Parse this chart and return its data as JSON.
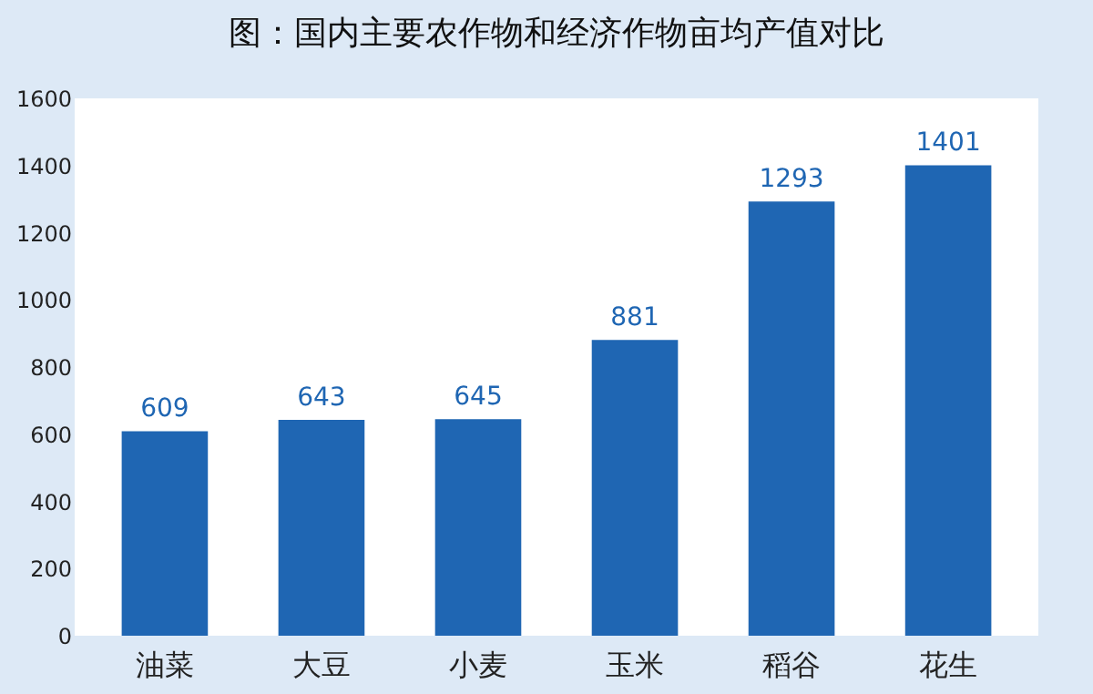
{
  "chart_data": {
    "type": "bar",
    "title": "图：国内主要农作物和经济作物亩均产值对比",
    "categories": [
      "油菜",
      "大豆",
      "小麦",
      "玉米",
      "稻谷",
      "花生"
    ],
    "values": [
      609,
      643,
      645,
      881,
      1293,
      1401
    ],
    "color": "#1f66b3",
    "ylim": [
      0,
      1600
    ],
    "yticks": [
      0,
      200,
      400,
      600,
      800,
      1000,
      1200,
      1400,
      1600
    ],
    "data_labels": true,
    "grid": false
  }
}
